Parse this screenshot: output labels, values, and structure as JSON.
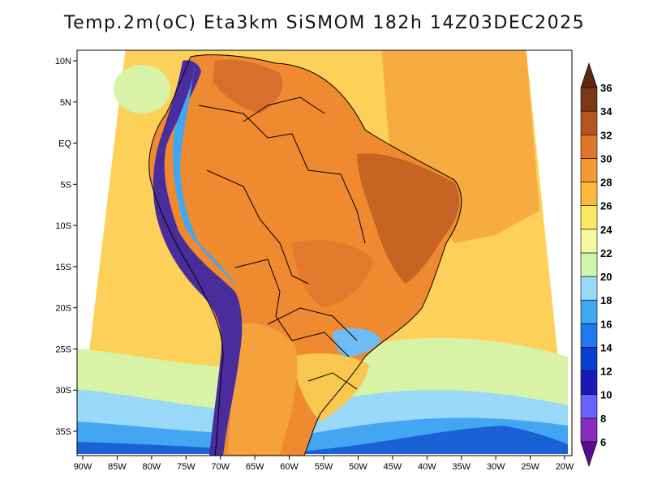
{
  "title": "Temp.2m(oC) Eta3km SiSMOM 182h 14Z03DEC2025",
  "axes": {
    "lon_ticks": [
      "90W",
      "85W",
      "80W",
      "75W",
      "70W",
      "65W",
      "60W",
      "55W",
      "50W",
      "45W",
      "40W",
      "35W",
      "30W",
      "25W",
      "20W"
    ],
    "lat_ticks": [
      "10N",
      "5N",
      "EQ",
      "5S",
      "10S",
      "15S",
      "20S",
      "25S",
      "30S",
      "35S"
    ]
  },
  "colorbar": {
    "labels": [
      "6",
      "8",
      "10",
      "12",
      "14",
      "16",
      "18",
      "20",
      "22",
      "24",
      "26",
      "28",
      "30",
      "32",
      "34",
      "36"
    ],
    "colors": [
      "#5a0a8c",
      "#8a2cc0",
      "#6a62ff",
      "#1a1ab8",
      "#0a3ed0",
      "#1f78ee",
      "#3ea8f4",
      "#98d8f8",
      "#cff5a8",
      "#f8f8a0",
      "#fce860",
      "#fbb93c",
      "#f39a35",
      "#e27628",
      "#b4541e",
      "#7c3814",
      "#5a2810"
    ]
  },
  "colors": {
    "ocean": "#fdd05a",
    "ocean_warm": "#f6a83a",
    "land_hot": "#f08a30",
    "land_very_hot": "#c66423",
    "andes_cold": "#4a2d9c",
    "south_cool": "#c8f0a0",
    "south_cold": "#42a6f2",
    "south_deep": "#1a60d6",
    "border": "#000000"
  }
}
